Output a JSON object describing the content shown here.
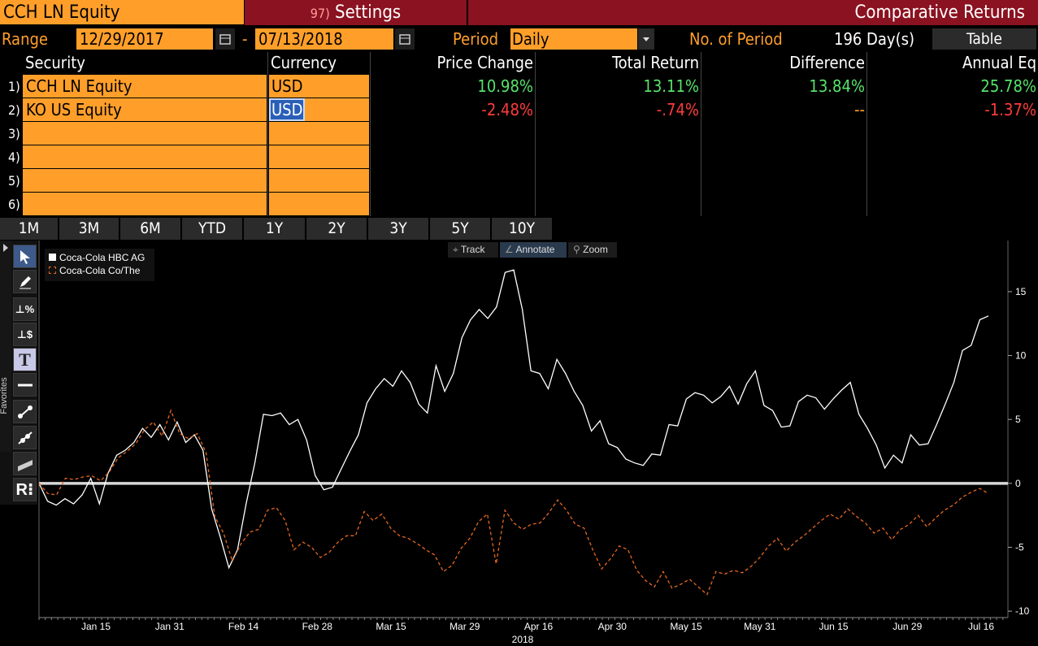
{
  "header": {
    "security": "CCH LN Equity",
    "settings_num": "97)",
    "settings_label": "Settings",
    "title": "Comparative Returns"
  },
  "controls": {
    "range_label": "Range",
    "start_date": "12/29/2017",
    "dash": "-",
    "end_date": "07/13/2018",
    "period_label": "Period",
    "period_value": "Daily",
    "no_period_label": "No. of Period",
    "no_period_value": "196 Day(s)",
    "table_button": "Table"
  },
  "table": {
    "headers": [
      "Security",
      "Currency",
      "Price Change",
      "Total Return",
      "Difference",
      "Annual Eq"
    ],
    "rows": [
      {
        "num": "1)",
        "security": "CCH LN Equity",
        "currency": "USD",
        "price_change": "10.98%",
        "total_return": "13.11%",
        "difference": "13.84%",
        "annual_eq": "25.78%"
      },
      {
        "num": "2)",
        "security": "KO US Equity",
        "currency": "USD",
        "price_change": "-2.48%",
        "total_return": "-.74%",
        "difference": "--",
        "annual_eq": "-1.37%"
      },
      {
        "num": "3)",
        "security": "",
        "currency": "",
        "price_change": "",
        "total_return": "",
        "difference": "",
        "annual_eq": ""
      },
      {
        "num": "4)",
        "security": "",
        "currency": "",
        "price_change": "",
        "total_return": "",
        "difference": "",
        "annual_eq": ""
      },
      {
        "num": "5)",
        "security": "",
        "currency": "",
        "price_change": "",
        "total_return": "",
        "difference": "",
        "annual_eq": ""
      },
      {
        "num": "6)",
        "security": "",
        "currency": "",
        "price_change": "",
        "total_return": "",
        "difference": "",
        "annual_eq": ""
      }
    ]
  },
  "timeframes": [
    "1M",
    "3M",
    "6M",
    "YTD",
    "1Y",
    "2Y",
    "3Y",
    "5Y",
    "10Y"
  ],
  "chart_tools": {
    "track": "Track",
    "annotate": "Annotate",
    "zoom": "Zoom",
    "favorites": "Favorites",
    "side_icons": [
      "cursor-icon",
      "pencil-icon",
      "percent-marker-icon",
      "dollar-marker-icon",
      "text-icon",
      "horizontal-line-icon",
      "trendline-icon",
      "segment-icon",
      "channel-icon",
      "r-icon"
    ]
  },
  "colors": {
    "orange": "#ff9f2a",
    "header_red": "#8b1220",
    "positive": "#57e36a",
    "negative": "#ff3b3b",
    "series_1": "#ffffff",
    "series_2": "#e5671f"
  },
  "chart_data": {
    "type": "line",
    "xlabel": "2018",
    "x_ticks": [
      "Jan 15",
      "Jan 31",
      "Feb 14",
      "Feb 28",
      "Mar 15",
      "Mar 29",
      "Apr 16",
      "Apr 30",
      "May 15",
      "May 31",
      "Jun 15",
      "Jun 29",
      "Jul 16"
    ],
    "y_ticks": [
      15,
      10,
      5,
      0,
      -5,
      -10
    ],
    "ylim": [
      -10.5,
      19
    ],
    "zero_line": true,
    "legend_placement": "top-left",
    "series": [
      {
        "name": "Coca-Cola HBC AG",
        "style": "solid",
        "color": "#ffffff",
        "values": [
          0,
          -1.4,
          -1.7,
          -1.2,
          -1.6,
          -0.9,
          0.4,
          -1.6,
          0.8,
          2.2,
          2.6,
          3.2,
          4.3,
          3.6,
          4.6,
          3.4,
          4.8,
          3.2,
          3.8,
          2.6,
          -2.0,
          -4.2,
          -6.6,
          -5.2,
          -1.6,
          1.6,
          5.4,
          5.3,
          5.5,
          4.6,
          5.0,
          3.4,
          0.6,
          -0.5,
          -0.3,
          1.1,
          2.5,
          3.8,
          6.3,
          7.4,
          8.2,
          7.6,
          8.8,
          7.9,
          6.2,
          5.5,
          9.2,
          7.2,
          8.6,
          11.4,
          12.8,
          13.6,
          12.9,
          13.8,
          16.5,
          16.7,
          13.6,
          8.8,
          8.6,
          7.4,
          9.7,
          8.6,
          7.2,
          6.1,
          4.1,
          4.9,
          3.1,
          2.8,
          1.9,
          1.6,
          1.4,
          2.3,
          2.2,
          4.6,
          4.5,
          6.6,
          7.1,
          6.9,
          6.3,
          6.8,
          7.6,
          6.2,
          7.8,
          8.8,
          6.1,
          5.7,
          4.4,
          4.5,
          6.4,
          6.9,
          6.7,
          5.8,
          6.6,
          7.3,
          7.9,
          5.4,
          4.3,
          3.0,
          1.2,
          2.2,
          1.6,
          3.8,
          3.0,
          3.1,
          4.6,
          6.2,
          7.9,
          10.4,
          10.8,
          12.8,
          13.1
        ]
      },
      {
        "name": "Coca-Cola Co/The",
        "style": "dashed",
        "color": "#e5671f",
        "values": [
          0,
          -0.8,
          -0.9,
          0.4,
          0.3,
          0.5,
          0.6,
          0.2,
          0.9,
          2.0,
          2.5,
          3.1,
          4.2,
          4.8,
          3.7,
          5.7,
          3.9,
          3.5,
          3.9,
          2.4,
          -2.6,
          -3.9,
          -6.1,
          -4.7,
          -3.8,
          -3.6,
          -2.1,
          -1.9,
          -2.9,
          -5.2,
          -4.6,
          -5.0,
          -5.8,
          -5.4,
          -4.6,
          -4.1,
          -4.1,
          -2.2,
          -2.9,
          -2.4,
          -3.5,
          -4.1,
          -4.3,
          -4.7,
          -5.2,
          -5.6,
          -6.9,
          -6.4,
          -5.1,
          -4.3,
          -3.0,
          -2.4,
          -6.3,
          -2.1,
          -3.1,
          -3.6,
          -3.2,
          -3.1,
          -2.3,
          -1.3,
          -2.1,
          -3.2,
          -3.5,
          -5.2,
          -6.7,
          -5.9,
          -4.9,
          -5.2,
          -6.8,
          -7.6,
          -8.1,
          -6.9,
          -8.2,
          -7.9,
          -7.5,
          -8.1,
          -8.7,
          -6.9,
          -7.1,
          -6.8,
          -7.0,
          -6.5,
          -5.8,
          -4.9,
          -4.3,
          -5.3,
          -4.6,
          -4.1,
          -3.5,
          -2.9,
          -2.4,
          -2.8,
          -2.0,
          -2.6,
          -3.1,
          -3.9,
          -3.5,
          -4.4,
          -3.6,
          -3.2,
          -2.5,
          -3.4,
          -2.7,
          -2.1,
          -1.7,
          -1.1,
          -0.7,
          -0.4,
          -0.8
        ]
      }
    ]
  }
}
